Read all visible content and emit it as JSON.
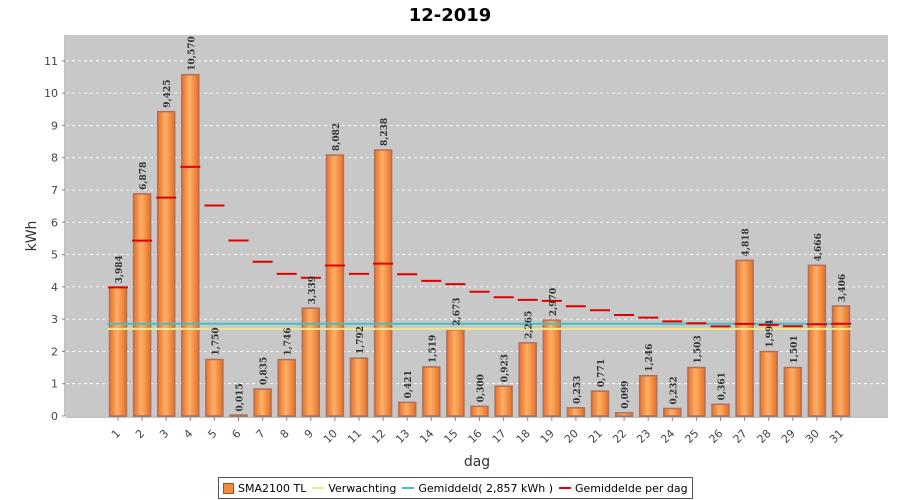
{
  "chart_data": {
    "type": "bar",
    "title": "12-2019",
    "xlabel": "dag",
    "ylabel": "kWh",
    "ylim": [
      0,
      11.8
    ],
    "yticks": [
      0,
      1,
      2,
      3,
      4,
      5,
      6,
      7,
      8,
      9,
      10,
      11
    ],
    "categories": [
      "1",
      "2",
      "3",
      "4",
      "5",
      "6",
      "7",
      "8",
      "9",
      "10",
      "11",
      "12",
      "13",
      "14",
      "15",
      "16",
      "17",
      "18",
      "19",
      "20",
      "21",
      "22",
      "23",
      "24",
      "25",
      "26",
      "27",
      "28",
      "29",
      "30",
      "31"
    ],
    "series": [
      {
        "name": "SMA2100 TL",
        "values": [
          3.984,
          6.878,
          9.425,
          10.57,
          1.75,
          0.015,
          0.835,
          1.746,
          3.339,
          8.082,
          1.792,
          8.238,
          0.421,
          1.519,
          2.673,
          0.3,
          0.923,
          2.265,
          2.97,
          0.253,
          0.771,
          0.099,
          1.246,
          0.232,
          1.503,
          0.361,
          4.818,
          1.994,
          1.501,
          4.666,
          3.406
        ],
        "labels": [
          "3,984",
          "6,878",
          "9,425",
          "10,570",
          "1,750",
          "0,015",
          "0,835",
          "1,746",
          "3,339",
          "8,082",
          "1,792",
          "8,238",
          "0,421",
          "1,519",
          "2,673",
          "0,300",
          "0,923",
          "2,265",
          "2,970",
          "0,253",
          "0,771",
          "0,099",
          "1,246",
          "0,232",
          "1,503",
          "0,361",
          "4,818",
          "1,994",
          "1,501",
          "4,666",
          "3,406"
        ],
        "color": "#f28c3c"
      },
      {
        "name": "Verwachting",
        "value": 2.7,
        "color": "#f0e68c"
      },
      {
        "name": "Gemiddeld( 2,857 kWh )",
        "value": 2.857,
        "color": "#40c0c8"
      },
      {
        "name": "Gemiddelde per dag",
        "values": [
          3.984,
          5.431,
          6.762,
          7.714,
          6.521,
          5.437,
          4.779,
          4.4,
          4.282,
          4.662,
          4.401,
          4.721,
          4.39,
          4.185,
          4.084,
          3.848,
          3.676,
          3.598,
          3.565,
          3.399,
          3.274,
          3.129,
          3.047,
          2.93,
          2.873,
          2.777,
          2.853,
          2.823,
          2.778,
          2.841,
          2.857
        ],
        "color": "#e00000"
      }
    ],
    "legend_position": "bottom"
  }
}
